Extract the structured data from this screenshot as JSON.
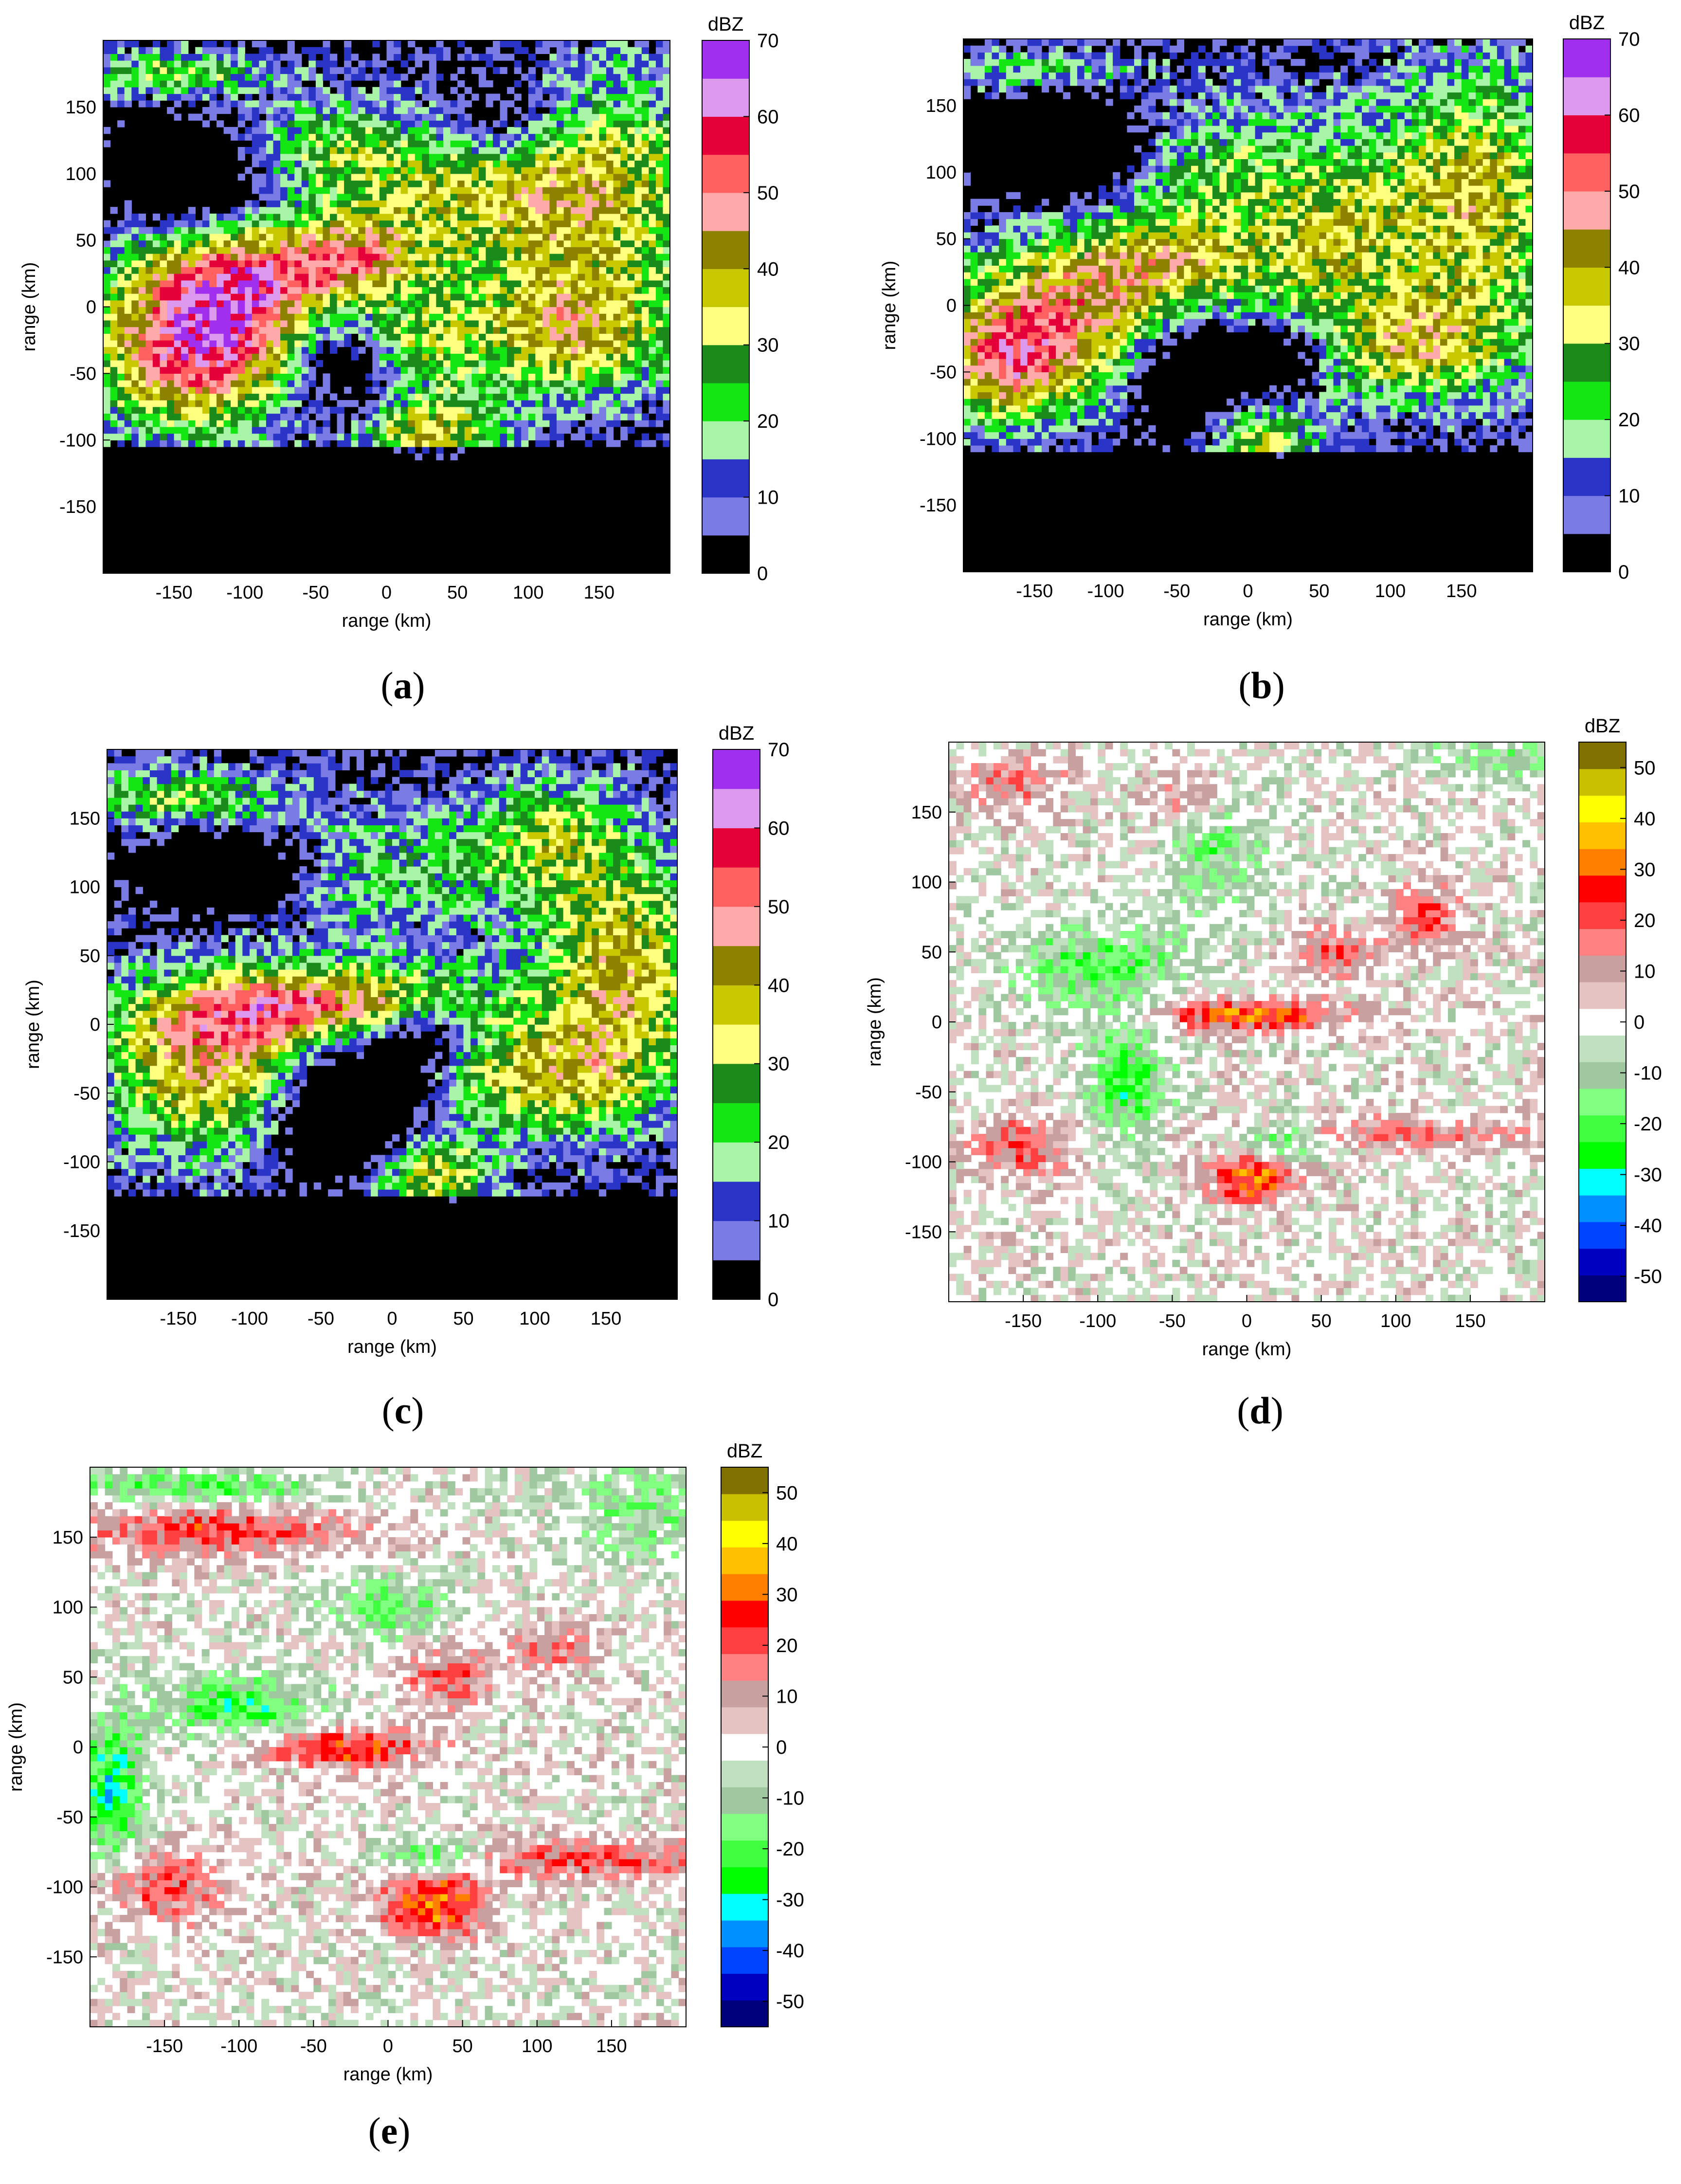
{
  "colorbars": {
    "reflectivity": {
      "unit_label": "dBZ",
      "range": [
        0,
        70
      ],
      "ticks": [
        0,
        10,
        20,
        30,
        40,
        50,
        60,
        70
      ],
      "colors": [
        "#000000",
        "#7b7be6",
        "#2a35c8",
        "#a8f5a8",
        "#14e614",
        "#1a8a1a",
        "#ffff80",
        "#c8c800",
        "#8c8200",
        "#ffaaaa",
        "#ff6060",
        "#e6003a",
        "#dd99ee",
        "#a030ee"
      ]
    },
    "difference": {
      "unit_label": "dBZ",
      "range": [
        -55,
        55
      ],
      "ticks": [
        -50,
        -40,
        -30,
        -20,
        -10,
        0,
        10,
        20,
        30,
        40,
        50
      ],
      "colors": [
        "#00007a",
        "#0000c0",
        "#0044ff",
        "#0090ff",
        "#00ffff",
        "#00ff00",
        "#40ff40",
        "#80ff80",
        "#a0c8a0",
        "#c0e0c0",
        "#ffffff",
        "#e6c3c3",
        "#c8a0a0",
        "#ff8080",
        "#ff4040",
        "#ff0000",
        "#ff8000",
        "#ffc000",
        "#ffff00",
        "#c8c000",
        "#807000"
      ]
    }
  },
  "panels": [
    {
      "id": "a",
      "label": "a",
      "open": "(",
      "close": ")",
      "cbar": "reflectivity",
      "xlabel": "range (km)",
      "ylabel": "range (km)"
    },
    {
      "id": "b",
      "label": "b",
      "open": "(",
      "close": ")",
      "cbar": "reflectivity",
      "xlabel": "range (km)",
      "ylabel": "range (km)"
    },
    {
      "id": "c",
      "label": "c",
      "open": "(",
      "close": ")",
      "cbar": "reflectivity",
      "xlabel": "range (km)",
      "ylabel": "range (km)"
    },
    {
      "id": "d",
      "label": "d",
      "open": "(",
      "close": ")",
      "cbar": "difference",
      "xlabel": "range (km)",
      "ylabel": "range (km)"
    },
    {
      "id": "e",
      "label": "e",
      "open": "(",
      "close": ")",
      "cbar": "difference",
      "xlabel": "range (km)",
      "ylabel": "range (km)"
    }
  ],
  "chart_data": [
    {
      "type": "heatmap",
      "panel": "a",
      "quantity": "reflectivity",
      "xlabel": "range (km)",
      "ylabel": "range (km)",
      "xlim": [
        -200,
        200
      ],
      "ylim": [
        -200,
        200
      ],
      "xticks": [
        -150,
        -100,
        -50,
        0,
        50,
        100,
        150
      ],
      "yticks": [
        -150,
        -100,
        -50,
        0,
        50,
        100,
        150
      ],
      "colorbar": {
        "label": "dBZ",
        "range": [
          0,
          70
        ],
        "ticks": [
          0,
          10,
          20,
          30,
          40,
          50,
          60,
          70
        ]
      },
      "grid_resolution_km": 5,
      "features": [
        {
          "x": -110,
          "y": -10,
          "sx": 55,
          "sy": 50,
          "amp": 40
        },
        {
          "x": -150,
          "y": -35,
          "sx": 45,
          "sy": 40,
          "amp": 28
        },
        {
          "x": -60,
          "y": 30,
          "sx": 70,
          "sy": 25,
          "amp": 25
        },
        {
          "x": -150,
          "y": 175,
          "sx": 50,
          "sy": 12,
          "amp": 24
        },
        {
          "x": -60,
          "y": 120,
          "sx": 55,
          "sy": 25,
          "amp": 18
        },
        {
          "x": 40,
          "y": 90,
          "sx": 60,
          "sy": 40,
          "amp": 24
        },
        {
          "x": 150,
          "y": 90,
          "sx": 60,
          "sy": 60,
          "amp": 32
        },
        {
          "x": 130,
          "y": -20,
          "sx": 55,
          "sy": 35,
          "amp": 33
        },
        {
          "x": 10,
          "y": -30,
          "sx": 40,
          "sy": 25,
          "amp": 24
        },
        {
          "x": 30,
          "y": -95,
          "sx": 35,
          "sy": 20,
          "amp": 34
        },
        {
          "x": -20,
          "y": 40,
          "sx": 25,
          "sy": 20,
          "amp": 15
        }
      ],
      "empty_regions": [
        {
          "x": -30,
          "y": -40,
          "sx": 30,
          "sy": 30,
          "amp": 30
        },
        {
          "x": -130,
          "y": 100,
          "sx": 40,
          "sy": 30,
          "amp": 26
        },
        {
          "x": 80,
          "y": 140,
          "sx": 35,
          "sy": 25,
          "amp": 22
        }
      ],
      "empty_below_y": -105
    },
    {
      "type": "heatmap",
      "panel": "b",
      "quantity": "reflectivity",
      "xlabel": "range (km)",
      "ylabel": "range (km)",
      "xlim": [
        -200,
        200
      ],
      "ylim": [
        -200,
        200
      ],
      "xticks": [
        -150,
        -100,
        -50,
        0,
        50,
        100,
        150
      ],
      "yticks": [
        -150,
        -100,
        -50,
        0,
        50,
        100,
        150
      ],
      "colorbar": {
        "label": "dBZ",
        "range": [
          0,
          70
        ],
        "ticks": [
          0,
          10,
          20,
          30,
          40,
          50,
          60,
          70
        ]
      },
      "grid_resolution_km": 5,
      "features": [
        {
          "x": -130,
          "y": -10,
          "sx": 70,
          "sy": 40,
          "amp": 38
        },
        {
          "x": -170,
          "y": -50,
          "sx": 35,
          "sy": 30,
          "amp": 30
        },
        {
          "x": -50,
          "y": 30,
          "sx": 60,
          "sy": 25,
          "amp": 24
        },
        {
          "x": -150,
          "y": 175,
          "sx": 50,
          "sy": 12,
          "amp": 22
        },
        {
          "x": -20,
          "y": 100,
          "sx": 70,
          "sy": 40,
          "amp": 22
        },
        {
          "x": 160,
          "y": 80,
          "sx": 50,
          "sy": 70,
          "amp": 34
        },
        {
          "x": 110,
          "y": -30,
          "sx": 55,
          "sy": 30,
          "amp": 30
        },
        {
          "x": 5,
          "y": -100,
          "sx": 30,
          "sy": 20,
          "amp": 30
        },
        {
          "x": 60,
          "y": 50,
          "sx": 35,
          "sy": 35,
          "amp": 20
        }
      ],
      "empty_regions": [
        {
          "x": -130,
          "y": 120,
          "sx": 45,
          "sy": 30,
          "amp": 30
        },
        {
          "x": -40,
          "y": -50,
          "sx": 30,
          "sy": 35,
          "amp": 32
        },
        {
          "x": 30,
          "y": -40,
          "sx": 20,
          "sy": 20,
          "amp": 20
        }
      ],
      "empty_below_y": -110
    },
    {
      "type": "heatmap",
      "panel": "c",
      "quantity": "reflectivity",
      "xlabel": "range (km)",
      "ylabel": "range (km)",
      "xlim": [
        -200,
        200
      ],
      "ylim": [
        -200,
        200
      ],
      "xticks": [
        -150,
        -100,
        -50,
        0,
        50,
        100,
        150
      ],
      "yticks": [
        -150,
        -100,
        -50,
        0,
        50,
        100,
        150
      ],
      "colorbar": {
        "label": "dBZ",
        "range": [
          0,
          70
        ],
        "ticks": [
          0,
          10,
          20,
          30,
          40,
          50,
          60,
          70
        ]
      },
      "grid_resolution_km": 5,
      "features": [
        {
          "x": -130,
          "y": -30,
          "sx": 55,
          "sy": 45,
          "amp": 38
        },
        {
          "x": -80,
          "y": 10,
          "sx": 60,
          "sy": 20,
          "amp": 28
        },
        {
          "x": -10,
          "y": 20,
          "sx": 60,
          "sy": 20,
          "amp": 24
        },
        {
          "x": -150,
          "y": 165,
          "sx": 55,
          "sy": 15,
          "amp": 24
        },
        {
          "x": -20,
          "y": 110,
          "sx": 70,
          "sy": 30,
          "amp": 20
        },
        {
          "x": 160,
          "y": 40,
          "sx": 45,
          "sy": 60,
          "amp": 36
        },
        {
          "x": 100,
          "y": -40,
          "sx": 55,
          "sy": 30,
          "amp": 30
        },
        {
          "x": 25,
          "y": -110,
          "sx": 30,
          "sy": 20,
          "amp": 34
        },
        {
          "x": 110,
          "y": 140,
          "sx": 40,
          "sy": 30,
          "amp": 22
        }
      ],
      "empty_regions": [
        {
          "x": -110,
          "y": 110,
          "sx": 45,
          "sy": 22,
          "amp": 28
        },
        {
          "x": -30,
          "y": -60,
          "sx": 35,
          "sy": 35,
          "amp": 34
        },
        {
          "x": 20,
          "y": -10,
          "sx": 20,
          "sy": 18,
          "amp": 20
        }
      ],
      "empty_below_y": -125
    },
    {
      "type": "heatmap",
      "panel": "d",
      "quantity": "reflectivity difference",
      "xlabel": "range (km)",
      "ylabel": "range (km)",
      "xlim": [
        -200,
        200
      ],
      "ylim": [
        -200,
        200
      ],
      "xticks": [
        -150,
        -100,
        -50,
        0,
        50,
        100,
        150
      ],
      "yticks": [
        -150,
        -100,
        -50,
        0,
        50,
        100,
        150
      ],
      "colorbar": {
        "label": "dBZ",
        "range": [
          -55,
          55
        ],
        "ticks": [
          -50,
          -40,
          -30,
          -20,
          -10,
          0,
          10,
          20,
          30,
          40,
          50
        ]
      },
      "grid_resolution_km": 5,
      "features": [
        {
          "x": 0,
          "y": 5,
          "sx": 45,
          "sy": 8,
          "amp": 30
        },
        {
          "x": 5,
          "y": -110,
          "sx": 20,
          "sy": 15,
          "amp": 32
        },
        {
          "x": -150,
          "y": -90,
          "sx": 25,
          "sy": 15,
          "amp": 20
        },
        {
          "x": 120,
          "y": 75,
          "sx": 15,
          "sy": 15,
          "amp": 22
        },
        {
          "x": 60,
          "y": 50,
          "sx": 20,
          "sy": 12,
          "amp": 18
        },
        {
          "x": 80,
          "y": -80,
          "sx": 80,
          "sy": 8,
          "amp": 18
        },
        {
          "x": -160,
          "y": 170,
          "sx": 25,
          "sy": 15,
          "amp": 15
        },
        {
          "x": -40,
          "y": 160,
          "sx": 20,
          "sy": 15,
          "amp": 14
        },
        {
          "x": -100,
          "y": 40,
          "sx": 40,
          "sy": 20,
          "amp": -20
        },
        {
          "x": -80,
          "y": -40,
          "sx": 20,
          "sy": 30,
          "amp": -22
        },
        {
          "x": 20,
          "y": -85,
          "sx": 25,
          "sy": 10,
          "amp": -30
        },
        {
          "x": -20,
          "y": 120,
          "sx": 25,
          "sy": 30,
          "amp": -16
        },
        {
          "x": 170,
          "y": 190,
          "sx": 40,
          "sy": 12,
          "amp": -12
        }
      ],
      "empty_regions": [],
      "empty_below_y": -130
    },
    {
      "type": "heatmap",
      "panel": "e",
      "quantity": "reflectivity difference",
      "xlabel": "range (km)",
      "ylabel": "range (km)",
      "xlim": [
        -200,
        200
      ],
      "ylim": [
        -200,
        200
      ],
      "xticks": [
        -150,
        -100,
        -50,
        0,
        50,
        100,
        150
      ],
      "yticks": [
        -150,
        -100,
        -50,
        0,
        50,
        100,
        150
      ],
      "colorbar": {
        "label": "dBZ",
        "range": [
          -55,
          55
        ],
        "ticks": [
          -50,
          -40,
          -30,
          -20,
          -10,
          0,
          10,
          20,
          30,
          40,
          50
        ]
      },
      "grid_resolution_km": 5,
      "features": [
        {
          "x": -30,
          "y": 0,
          "sx": 40,
          "sy": 10,
          "amp": 28
        },
        {
          "x": 30,
          "y": -110,
          "sx": 25,
          "sy": 20,
          "amp": 32
        },
        {
          "x": -150,
          "y": -100,
          "sx": 30,
          "sy": 18,
          "amp": 20
        },
        {
          "x": 130,
          "y": -80,
          "sx": 70,
          "sy": 10,
          "amp": 20
        },
        {
          "x": -120,
          "y": 155,
          "sx": 70,
          "sy": 12,
          "amp": 22
        },
        {
          "x": 40,
          "y": 50,
          "sx": 20,
          "sy": 15,
          "amp": 20
        },
        {
          "x": 110,
          "y": 70,
          "sx": 20,
          "sy": 12,
          "amp": 18
        },
        {
          "x": -130,
          "y": 185,
          "sx": 60,
          "sy": 8,
          "amp": -22
        },
        {
          "x": -100,
          "y": 30,
          "sx": 40,
          "sy": 15,
          "amp": -24
        },
        {
          "x": -185,
          "y": -30,
          "sx": 15,
          "sy": 35,
          "amp": -30
        },
        {
          "x": 30,
          "y": -80,
          "sx": 25,
          "sy": 10,
          "amp": -30
        },
        {
          "x": 0,
          "y": 100,
          "sx": 30,
          "sy": 15,
          "amp": -18
        },
        {
          "x": 170,
          "y": 170,
          "sx": 40,
          "sy": 25,
          "amp": -14
        }
      ],
      "empty_regions": [],
      "empty_below_y": -140
    }
  ]
}
